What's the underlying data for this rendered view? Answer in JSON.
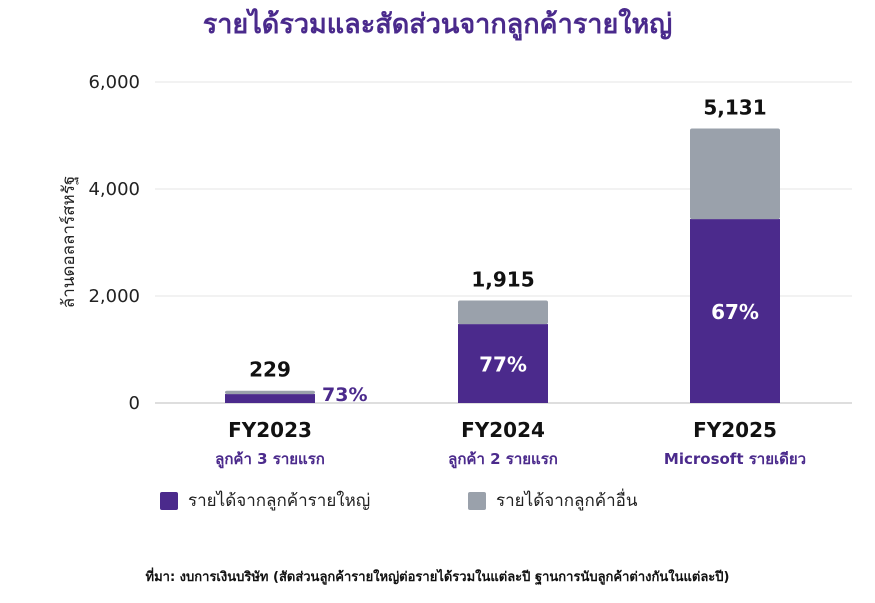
{
  "title": "รายได้รวมและสัดส่วนจากลูกค้ารายใหญ่",
  "source_note": "ที่มา: งบการเงินบริษัท (สัดส่วนลูกค้ารายใหญ่ต่อรายได้รวมในแต่ละปี ฐานการนับลูกค้าต่างกันในแต่ละปี)",
  "colors": {
    "major": "#4b2a8c",
    "other": "#9aa1ab",
    "title": "#4a2a8c"
  },
  "chart_data": {
    "type": "bar",
    "stacked": true,
    "categories": [
      "FY2023",
      "FY2024",
      "FY2025"
    ],
    "sublabels": [
      "ลูกค้า 3 รายแรก",
      "ลูกค้า 2 รายแรก",
      "Microsoft รายเดียว"
    ],
    "totals": [
      229,
      1915,
      5131
    ],
    "total_labels": [
      "229",
      "1,915",
      "5,131"
    ],
    "share_labels": [
      "73%",
      "77%",
      "67%"
    ],
    "series": [
      {
        "name": "รายได้จากลูกค้ารายใหญ่",
        "values": [
          167,
          1475,
          3438
        ]
      },
      {
        "name": "รายได้จากลูกค้าอื่น",
        "values": [
          62,
          440,
          1693
        ]
      }
    ],
    "ylabel": "ล้านดอลลาร์สหรัฐ",
    "ylim": [
      0,
      6000
    ],
    "yticks": [
      0,
      2000,
      4000,
      6000
    ],
    "ytick_labels": [
      "0",
      "2,000",
      "4,000",
      "6,000"
    ],
    "grid": true,
    "legend": "bottom"
  }
}
